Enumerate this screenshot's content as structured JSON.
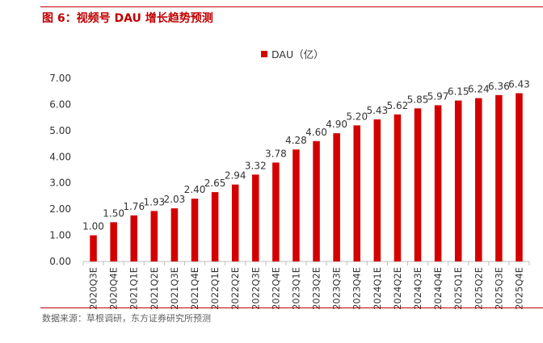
{
  "figure": {
    "title": "图 6：视频号 DAU 增长趋势预测",
    "source": "数据来源：草根调研，东方证券研究所预测"
  },
  "colors": {
    "bar": "#d40000",
    "accent": "#c00000",
    "axis": "#bfbfbf"
  },
  "chart_data": {
    "type": "bar",
    "title": "",
    "xlabel": "",
    "ylabel": "",
    "ylim": [
      0,
      7
    ],
    "yticks": [
      "0.00",
      "1.00",
      "2.00",
      "3.00",
      "4.00",
      "5.00",
      "6.00",
      "7.00"
    ],
    "legend": {
      "position": "top-center"
    },
    "grid": false,
    "categories": [
      "2020Q3E",
      "2020Q4E",
      "2021Q1E",
      "2021Q2E",
      "2021Q3E",
      "2021Q4E",
      "2022Q1E",
      "2022Q2E",
      "2022Q3E",
      "2022Q4E",
      "2023Q1E",
      "2023Q2E",
      "2023Q3E",
      "2023Q4E",
      "2024Q1E",
      "2024Q2E",
      "2024Q3E",
      "2024Q4E",
      "2025Q1E",
      "2025Q2E",
      "2025Q3E",
      "2025Q4E"
    ],
    "series": [
      {
        "name": "DAU（亿）",
        "values": [
          1.0,
          1.5,
          1.76,
          1.93,
          2.03,
          2.4,
          2.65,
          2.94,
          3.32,
          3.78,
          4.28,
          4.6,
          4.9,
          5.2,
          5.43,
          5.62,
          5.85,
          5.97,
          6.15,
          6.24,
          6.36,
          6.43
        ],
        "labels": [
          "1.00",
          "1.50",
          "1.76",
          "1.93",
          "2.03",
          "2.40",
          "2.65",
          "2.94",
          "3.32",
          "3.78",
          "4.28",
          "4.60",
          "4.90",
          "5.20",
          "5.43",
          "5.62",
          "5.85",
          "5.97",
          "6.15",
          "6.24",
          "6.36",
          "6.43"
        ]
      }
    ]
  }
}
